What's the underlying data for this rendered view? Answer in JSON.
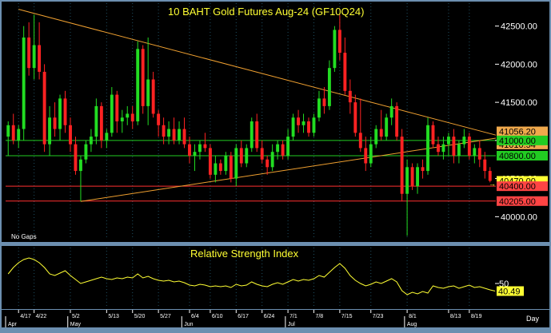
{
  "chart_data": [
    {
      "type": "candlestick",
      "title": "10  BAHT  Gold  Futures  Aug-24  (GF10Q24)",
      "note": "No  Gaps",
      "yticks": [
        40000,
        40500,
        41000,
        41500,
        42000,
        42500
      ],
      "ytick_labels": [
        "40000.00",
        "40500.00",
        "41000.00",
        "41500.00",
        "42000.00",
        "42500.00"
      ],
      "ylim": [
        39700,
        42800
      ],
      "x_tick_labels": [
        "4/17",
        "4/22",
        "5/2",
        "5/13",
        "5/20",
        "5/27",
        "6/4",
        "6/10",
        "6/17",
        "6/24",
        "7/1",
        "7/8",
        "7/15",
        "7/23",
        "8/1",
        "8/13",
        "8/19"
      ],
      "x_tick_index": [
        2,
        5,
        12,
        19,
        24,
        29,
        35,
        39,
        44,
        49,
        54,
        59,
        64,
        70,
        77,
        85,
        89
      ],
      "month_labels": [
        "Apr",
        "May",
        "Jun",
        "Jul",
        "Aug"
      ],
      "month_index": [
        0,
        12,
        34,
        54,
        77
      ],
      "x_axis_label": "Day",
      "levels": [
        {
          "label": "41056.20",
          "value": 41056.2,
          "bg": "#f0a94c",
          "fg": "#000000"
        },
        {
          "label": "41010.54",
          "value": 41010.54,
          "bg": "#f0a94c",
          "fg": "#000000"
        },
        {
          "label": "41000.00",
          "value": 41000.0,
          "bg": "#22cc22",
          "fg": "#000000",
          "line": "#22cc22"
        },
        {
          "label": "40800.00",
          "value": 40800.0,
          "bg": "#22cc22",
          "fg": "#000000",
          "line": "#22cc22"
        },
        {
          "label": "40470.00",
          "value": 40470.0,
          "bg": "#ffff33",
          "fg": "#000000"
        },
        {
          "label": "40400.00",
          "value": 40400.0,
          "bg": "#ff4444",
          "fg": "#000000",
          "line": "#ff3030"
        },
        {
          "label": "40205.00",
          "value": 40205.0,
          "bg": "#ff4444",
          "fg": "#000000",
          "line": "#ff3030"
        }
      ],
      "trendlines": [
        {
          "from": [
            2,
            42720
          ],
          "to": [
            100,
            41070
          ],
          "color": "#f0a030"
        },
        {
          "from": [
            14,
            40200
          ],
          "to": [
            100,
            41030
          ],
          "color": "#f0a030"
        }
      ],
      "candles": [
        {
          "o": 41050,
          "h": 41250,
          "l": 40800,
          "c": 41200
        },
        {
          "o": 41200,
          "h": 41350,
          "l": 40950,
          "c": 41000
        },
        {
          "o": 41000,
          "h": 41200,
          "l": 40900,
          "c": 41150
        },
        {
          "o": 41150,
          "h": 42500,
          "l": 41000,
          "c": 42350
        },
        {
          "o": 42350,
          "h": 42550,
          "l": 41850,
          "c": 41950
        },
        {
          "o": 41950,
          "h": 42650,
          "l": 41800,
          "c": 42250
        },
        {
          "o": 42250,
          "h": 42550,
          "l": 41800,
          "c": 41900
        },
        {
          "o": 41900,
          "h": 42000,
          "l": 40850,
          "c": 40950
        },
        {
          "o": 40950,
          "h": 41450,
          "l": 40800,
          "c": 41300
        },
        {
          "o": 41300,
          "h": 41500,
          "l": 41050,
          "c": 41150
        },
        {
          "o": 41150,
          "h": 41600,
          "l": 41000,
          "c": 41550
        },
        {
          "o": 41550,
          "h": 41650,
          "l": 41100,
          "c": 41200
        },
        {
          "o": 41200,
          "h": 41300,
          "l": 40850,
          "c": 40950
        },
        {
          "o": 40950,
          "h": 41050,
          "l": 40550,
          "c": 40600
        },
        {
          "o": 40600,
          "h": 40800,
          "l": 40200,
          "c": 40750
        },
        {
          "o": 40750,
          "h": 41000,
          "l": 40700,
          "c": 40950
        },
        {
          "o": 40950,
          "h": 41150,
          "l": 40850,
          "c": 41050
        },
        {
          "o": 41050,
          "h": 41550,
          "l": 40950,
          "c": 41450
        },
        {
          "o": 41450,
          "h": 41500,
          "l": 40900,
          "c": 41000
        },
        {
          "o": 41000,
          "h": 41150,
          "l": 40900,
          "c": 41100
        },
        {
          "o": 41100,
          "h": 41700,
          "l": 41050,
          "c": 41600
        },
        {
          "o": 41600,
          "h": 41650,
          "l": 41100,
          "c": 41250
        },
        {
          "o": 41250,
          "h": 41400,
          "l": 41100,
          "c": 41300
        },
        {
          "o": 41300,
          "h": 41450,
          "l": 41200,
          "c": 41350
        },
        {
          "o": 41350,
          "h": 41450,
          "l": 41150,
          "c": 41250
        },
        {
          "o": 41250,
          "h": 42300,
          "l": 41200,
          "c": 42200
        },
        {
          "o": 42200,
          "h": 42250,
          "l": 41350,
          "c": 41450
        },
        {
          "o": 41450,
          "h": 42350,
          "l": 41200,
          "c": 41800
        },
        {
          "o": 41800,
          "h": 41900,
          "l": 41300,
          "c": 41350
        },
        {
          "o": 41350,
          "h": 41400,
          "l": 41050,
          "c": 41200
        },
        {
          "o": 41200,
          "h": 41300,
          "l": 40950,
          "c": 41050
        },
        {
          "o": 41050,
          "h": 41250,
          "l": 40950,
          "c": 41150
        },
        {
          "o": 41150,
          "h": 41300,
          "l": 40950,
          "c": 41000
        },
        {
          "o": 41000,
          "h": 41250,
          "l": 40950,
          "c": 41150
        },
        {
          "o": 41150,
          "h": 41300,
          "l": 40900,
          "c": 40950
        },
        {
          "o": 40950,
          "h": 41050,
          "l": 40700,
          "c": 40800
        },
        {
          "o": 40800,
          "h": 40950,
          "l": 40600,
          "c": 40850
        },
        {
          "o": 40850,
          "h": 41000,
          "l": 40750,
          "c": 40950
        },
        {
          "o": 40950,
          "h": 41100,
          "l": 40850,
          "c": 40900
        },
        {
          "o": 40900,
          "h": 40950,
          "l": 40500,
          "c": 40550
        },
        {
          "o": 40550,
          "h": 40800,
          "l": 40450,
          "c": 40700
        },
        {
          "o": 40700,
          "h": 40750,
          "l": 40550,
          "c": 40600
        },
        {
          "o": 40600,
          "h": 40850,
          "l": 40550,
          "c": 40800
        },
        {
          "o": 40800,
          "h": 40850,
          "l": 40450,
          "c": 40500
        },
        {
          "o": 40500,
          "h": 40950,
          "l": 40400,
          "c": 40900
        },
        {
          "o": 40900,
          "h": 41000,
          "l": 40650,
          "c": 40700
        },
        {
          "o": 40700,
          "h": 40950,
          "l": 40650,
          "c": 40900
        },
        {
          "o": 40900,
          "h": 41300,
          "l": 40850,
          "c": 41250
        },
        {
          "o": 41250,
          "h": 41350,
          "l": 40850,
          "c": 40900
        },
        {
          "o": 40900,
          "h": 41000,
          "l": 40700,
          "c": 40750
        },
        {
          "o": 40750,
          "h": 40800,
          "l": 40550,
          "c": 40650
        },
        {
          "o": 40650,
          "h": 40950,
          "l": 40600,
          "c": 40850
        },
        {
          "o": 40850,
          "h": 41000,
          "l": 40750,
          "c": 40950
        },
        {
          "o": 40950,
          "h": 41000,
          "l": 40750,
          "c": 40800
        },
        {
          "o": 40800,
          "h": 41150,
          "l": 40750,
          "c": 41050
        },
        {
          "o": 41050,
          "h": 41350,
          "l": 41000,
          "c": 41300
        },
        {
          "o": 41300,
          "h": 41400,
          "l": 41100,
          "c": 41200
        },
        {
          "o": 41200,
          "h": 41350,
          "l": 41100,
          "c": 41250
        },
        {
          "o": 41250,
          "h": 41300,
          "l": 41050,
          "c": 41100
        },
        {
          "o": 41100,
          "h": 41350,
          "l": 41050,
          "c": 41300
        },
        {
          "o": 41300,
          "h": 41650,
          "l": 41250,
          "c": 41550
        },
        {
          "o": 41550,
          "h": 41700,
          "l": 41350,
          "c": 41450
        },
        {
          "o": 41450,
          "h": 42050,
          "l": 41400,
          "c": 41950
        },
        {
          "o": 41950,
          "h": 42500,
          "l": 41900,
          "c": 42450
        },
        {
          "o": 42450,
          "h": 42650,
          "l": 42050,
          "c": 42150
        },
        {
          "o": 42150,
          "h": 42350,
          "l": 41600,
          "c": 41650
        },
        {
          "o": 41650,
          "h": 41800,
          "l": 41350,
          "c": 41500
        },
        {
          "o": 41500,
          "h": 41600,
          "l": 41050,
          "c": 41100
        },
        {
          "o": 41100,
          "h": 41550,
          "l": 40850,
          "c": 40900
        },
        {
          "o": 40900,
          "h": 41050,
          "l": 40600,
          "c": 40700
        },
        {
          "o": 40700,
          "h": 41050,
          "l": 40650,
          "c": 40950
        },
        {
          "o": 40950,
          "h": 41200,
          "l": 40900,
          "c": 41150
        },
        {
          "o": 41150,
          "h": 41400,
          "l": 41000,
          "c": 41050
        },
        {
          "o": 41050,
          "h": 41350,
          "l": 41000,
          "c": 41300
        },
        {
          "o": 41300,
          "h": 41550,
          "l": 41200,
          "c": 41450
        },
        {
          "o": 41450,
          "h": 41500,
          "l": 41000,
          "c": 41050
        },
        {
          "o": 41050,
          "h": 41150,
          "l": 40200,
          "c": 40300
        },
        {
          "o": 40300,
          "h": 40750,
          "l": 39750,
          "c": 40650
        },
        {
          "o": 40650,
          "h": 40700,
          "l": 40350,
          "c": 40400
        },
        {
          "o": 40400,
          "h": 40700,
          "l": 40300,
          "c": 40650
        },
        {
          "o": 40650,
          "h": 40750,
          "l": 40500,
          "c": 40600
        },
        {
          "o": 40600,
          "h": 41300,
          "l": 40550,
          "c": 41200
        },
        {
          "o": 41200,
          "h": 41250,
          "l": 40900,
          "c": 40950
        },
        {
          "o": 40950,
          "h": 41050,
          "l": 40800,
          "c": 40850
        },
        {
          "o": 40850,
          "h": 41050,
          "l": 40750,
          "c": 40950
        },
        {
          "o": 40950,
          "h": 41100,
          "l": 40800,
          "c": 41050
        },
        {
          "o": 41050,
          "h": 41150,
          "l": 40700,
          "c": 40800
        },
        {
          "o": 40800,
          "h": 41000,
          "l": 40700,
          "c": 40950
        },
        {
          "o": 40950,
          "h": 41150,
          "l": 40900,
          "c": 41050
        },
        {
          "o": 41050,
          "h": 41100,
          "l": 40750,
          "c": 40800
        },
        {
          "o": 40800,
          "h": 40950,
          "l": 40700,
          "c": 40900
        },
        {
          "o": 40900,
          "h": 41000,
          "l": 40650,
          "c": 40750
        },
        {
          "o": 40750,
          "h": 40850,
          "l": 40500,
          "c": 40600
        },
        {
          "o": 40600,
          "h": 40650,
          "l": 40450,
          "c": 40470
        }
      ]
    },
    {
      "type": "line",
      "title": "Relative  Strength  Index",
      "ytick_labels": [
        "50"
      ],
      "yticks": [
        50
      ],
      "ylim": [
        20,
        95
      ],
      "last_label": "40.49",
      "last_value": 40.49,
      "values": [
        62,
        70,
        76,
        80,
        82,
        80,
        76,
        70,
        62,
        60,
        63,
        66,
        60,
        55,
        50,
        52,
        54,
        56,
        58,
        56,
        55,
        57,
        56,
        58,
        57,
        62,
        57,
        59,
        56,
        54,
        53,
        54,
        52,
        53,
        51,
        48,
        47,
        49,
        48,
        46,
        47,
        46,
        47,
        45,
        49,
        47,
        48,
        52,
        49,
        47,
        46,
        49,
        51,
        49,
        52,
        55,
        53,
        55,
        54,
        56,
        60,
        58,
        64,
        70,
        75,
        69,
        60,
        54,
        50,
        47,
        49,
        52,
        50,
        53,
        56,
        52,
        41,
        36,
        39,
        37,
        40,
        38,
        47,
        45,
        44,
        46,
        47,
        44,
        46,
        48,
        45,
        46,
        44,
        42,
        40.49
      ]
    }
  ]
}
